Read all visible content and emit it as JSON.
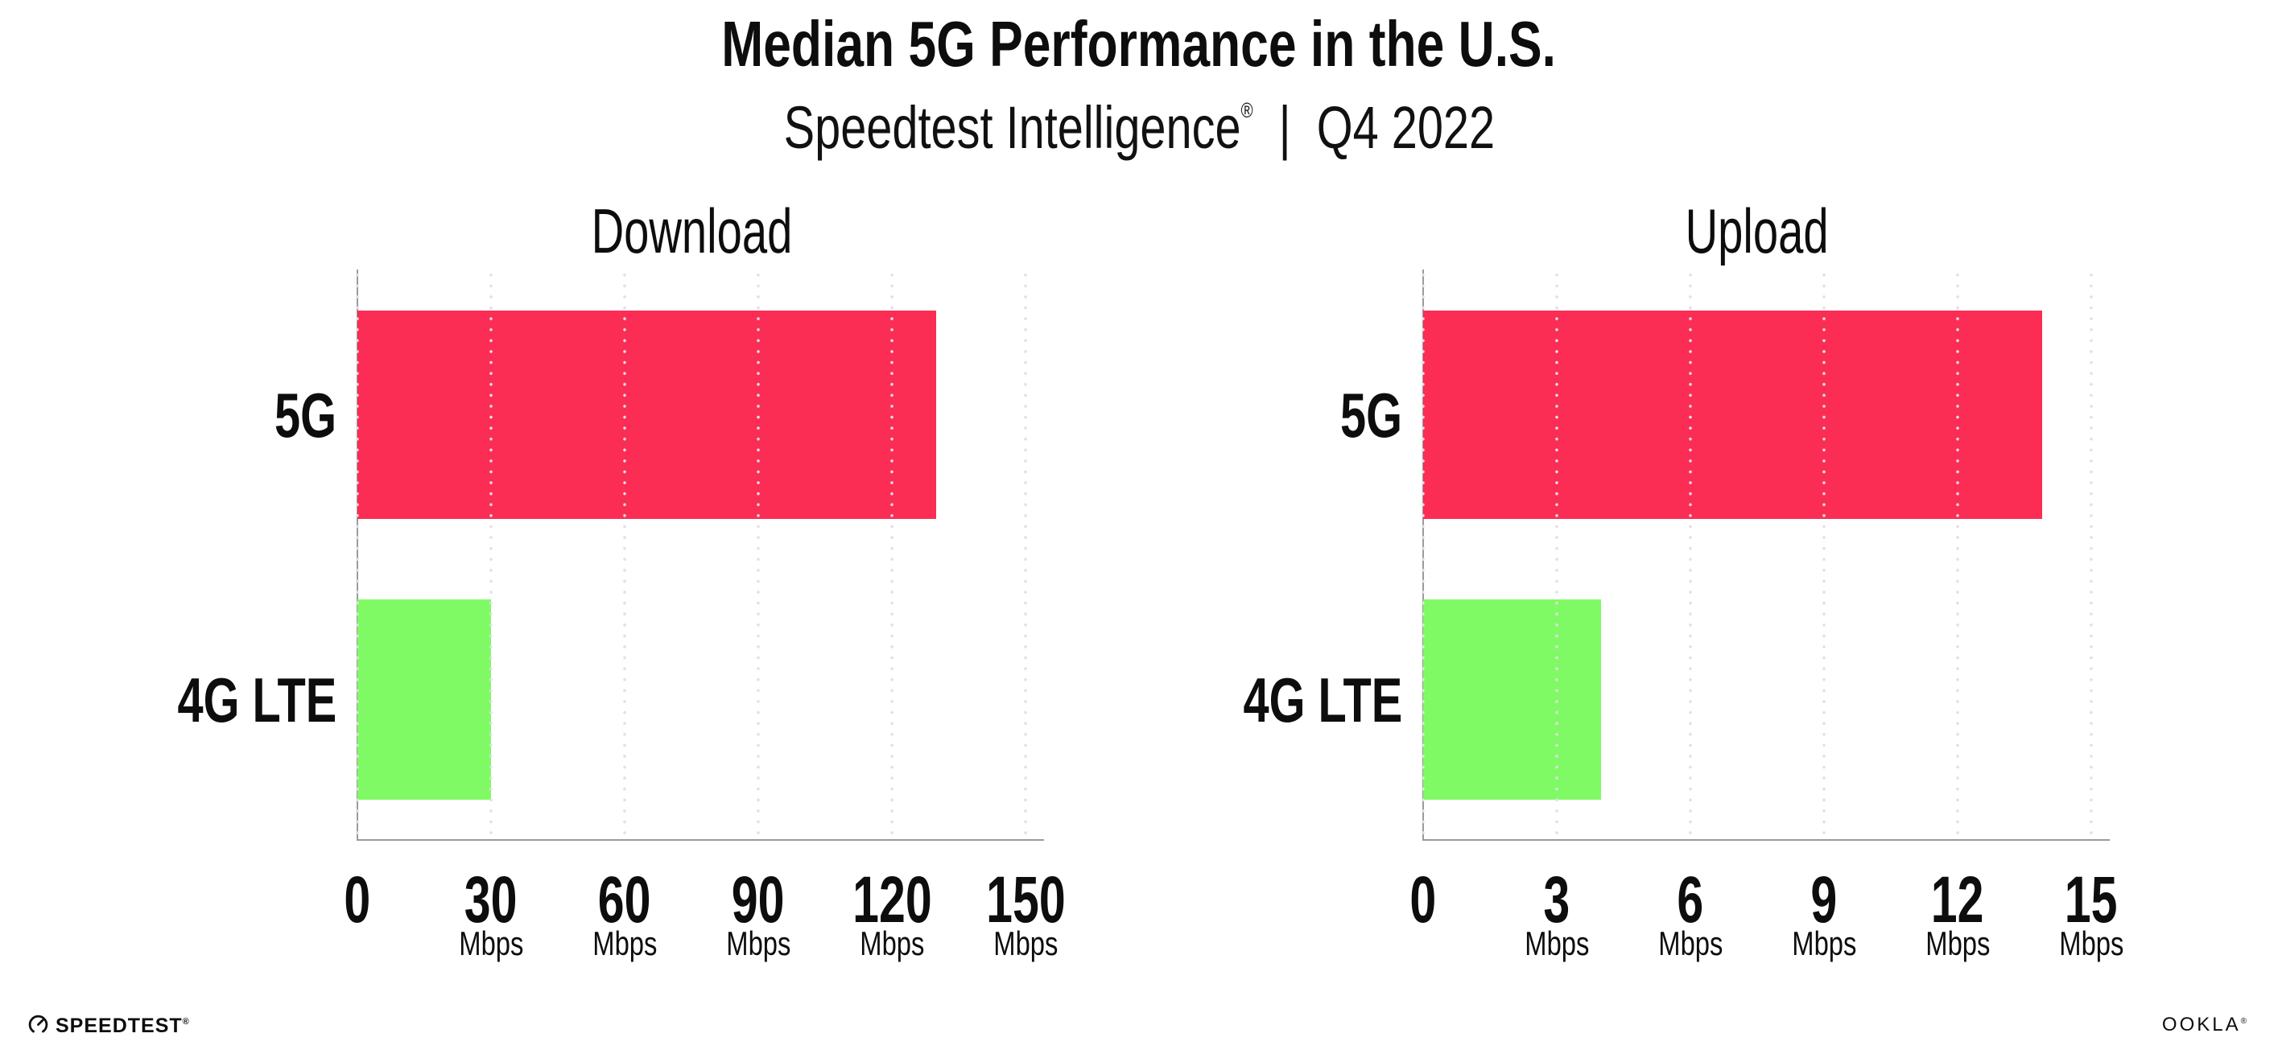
{
  "header": {
    "title": "Median 5G Performance in the U.S.",
    "subtitle": {
      "brand": "Speedtest Intelligence",
      "registered_mark": "®",
      "separator": "|",
      "period": "Q4 2022"
    }
  },
  "chart_data": [
    {
      "type": "bar",
      "orientation": "horizontal",
      "title": "Download",
      "categories": [
        "5G",
        "4G LTE"
      ],
      "values": [
        130,
        30
      ],
      "unit": "Mbps",
      "xlim": [
        0,
        150
      ],
      "xticks": [
        0,
        30,
        60,
        90,
        120,
        150
      ],
      "xtick_unit": "Mbps",
      "bar_colors": [
        "#FB2D55",
        "#80FA64"
      ],
      "grid": "dotted vertical gridlines",
      "legend": "none"
    },
    {
      "type": "bar",
      "orientation": "horizontal",
      "title": "Upload",
      "categories": [
        "5G",
        "4G LTE"
      ],
      "values": [
        13.9,
        4
      ],
      "unit": "Mbps",
      "xlim": [
        0,
        15
      ],
      "xticks": [
        0,
        3,
        6,
        9,
        12,
        15
      ],
      "xtick_unit": "Mbps",
      "bar_colors": [
        "#FB2D55",
        "#80FA64"
      ],
      "grid": "dotted vertical gridlines",
      "legend": "none"
    }
  ],
  "footer": {
    "speedtest_icon": "speedometer-gauge-icon",
    "speedtest_logo_text": "SPEEDTEST",
    "speedtest_registered_mark": "®",
    "ookla_logo_text": "OOKLA",
    "ookla_registered_mark": "®"
  },
  "colors": {
    "bar_5g": "#FB2D55",
    "bar_4g_lte": "#80FA64",
    "axis_line": "#9B9B9B",
    "gridline_dots": "#DFDFE9",
    "text": "#0D0D0D",
    "background": "#FFFFFF"
  }
}
